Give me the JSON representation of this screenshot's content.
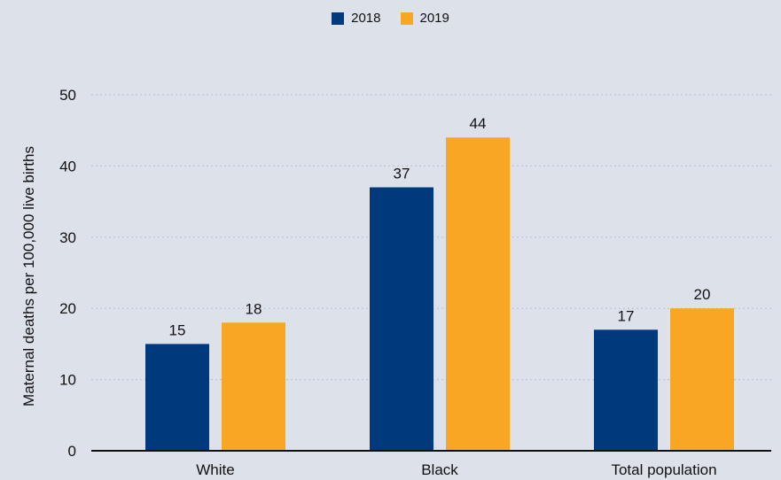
{
  "chart_data": {
    "type": "bar",
    "title": "",
    "xlabel": "",
    "ylabel": "Maternal deaths per 100,000 live births",
    "categories": [
      "White",
      "Black",
      "Total population"
    ],
    "series": [
      {
        "name": "2018",
        "color": "#003a7d",
        "values": [
          15,
          37,
          17
        ]
      },
      {
        "name": "2019",
        "color": "#f8a623",
        "values": [
          18,
          44,
          20
        ]
      }
    ],
    "ylim": [
      0,
      50
    ],
    "yticks": [
      0,
      10,
      20,
      30,
      40,
      50
    ],
    "grid": true,
    "legend_position": "top-center",
    "data_labels": true
  }
}
